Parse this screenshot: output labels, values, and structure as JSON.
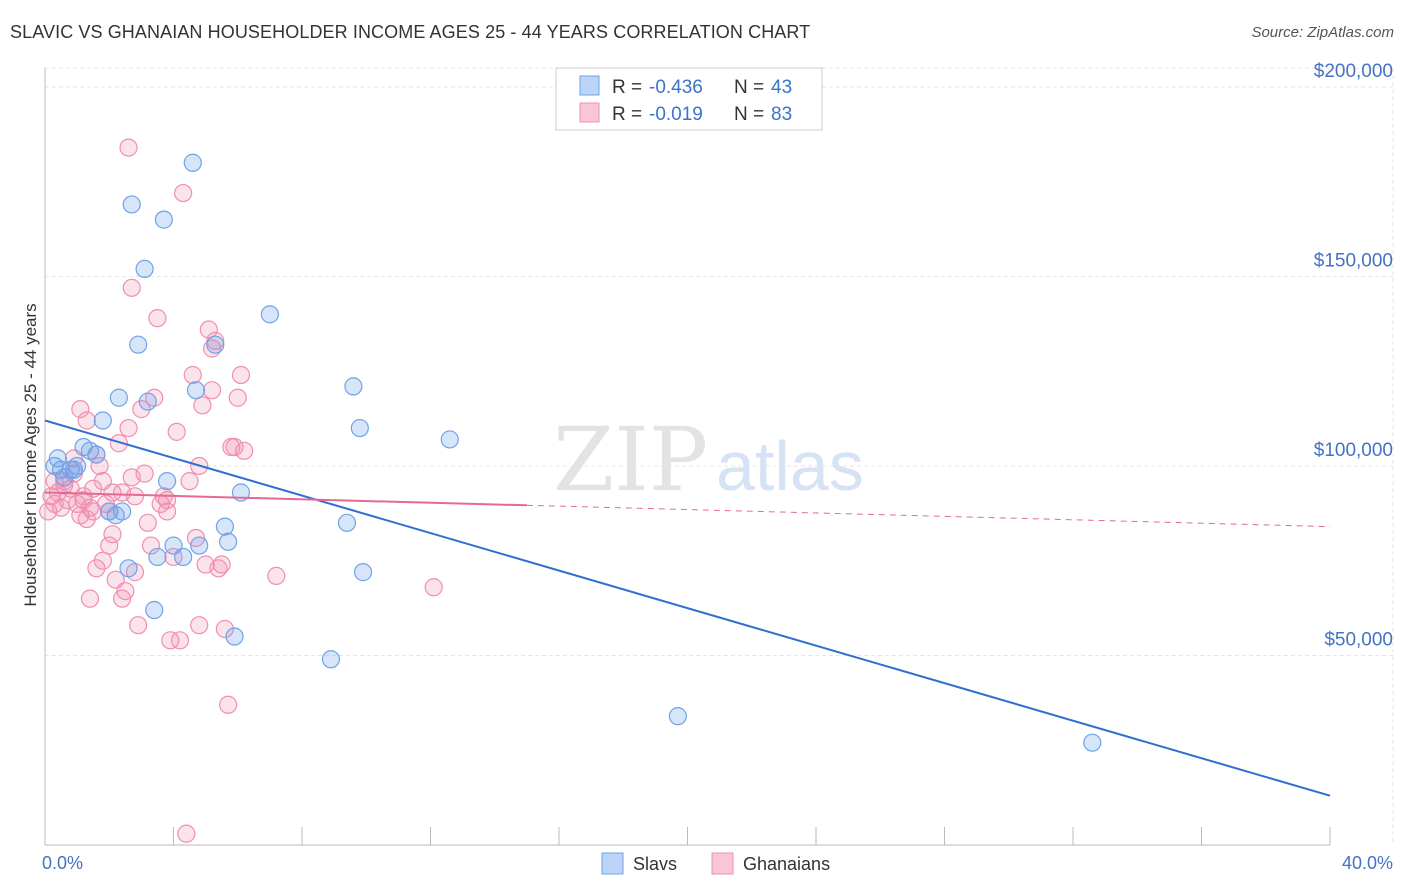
{
  "header": {
    "title": "SLAVIC VS GHANAIAN HOUSEHOLDER INCOME AGES 25 - 44 YEARS CORRELATION CHART",
    "source": "Source: ZipAtlas.com"
  },
  "watermark": {
    "part1": "ZIP",
    "part2": "atlas"
  },
  "colors": {
    "slavs": "#6FA3E8",
    "slavs_line": "#2E6FD0",
    "ghanaians": "#F08FB0",
    "ghanaians_line": "#E46A95",
    "axis_text": "#4472C4",
    "grid": "#e6e6e6"
  },
  "legend": {
    "slavs": {
      "r_label": "R = ",
      "r_value": "-0.436",
      "n_label": "N = ",
      "n_value": "43"
    },
    "ghanaians": {
      "r_label": "R = ",
      "r_value": "-0.019",
      "n_label": "N = ",
      "n_value": "83"
    }
  },
  "chart_data": {
    "type": "scatter",
    "title": "SLAVIC VS GHANAIAN HOUSEHOLDER INCOME AGES 25 - 44 YEARS CORRELATION CHART",
    "xlabel": "",
    "ylabel": "Householder Income Ages 25 - 44 years",
    "xlim": [
      0,
      40
    ],
    "ylim": [
      0,
      205000
    ],
    "x_tick_labels": [
      "0.0%",
      "40.0%"
    ],
    "y_ticks": [
      {
        "value": 50000,
        "label": "$50,000"
      },
      {
        "value": 100000,
        "label": "$100,000"
      },
      {
        "value": 150000,
        "label": "$150,000"
      },
      {
        "value": 200000,
        "label": "$200,000"
      }
    ],
    "grid": true,
    "legend_position": "top-center",
    "series": [
      {
        "name": "Slavs",
        "r": -0.436,
        "n": 43,
        "trend": {
          "x0": 0,
          "y0": 112000,
          "x1": 40,
          "y1": 13000,
          "dashed_from": null
        },
        "points": [
          [
            0.3,
            100000
          ],
          [
            0.5,
            99000
          ],
          [
            0.8,
            99000
          ],
          [
            0.9,
            99000
          ],
          [
            0.6,
            97000
          ],
          [
            1.2,
            105000
          ],
          [
            1.4,
            104000
          ],
          [
            1.6,
            103000
          ],
          [
            1.8,
            112000
          ],
          [
            2.0,
            88000
          ],
          [
            2.2,
            87000
          ],
          [
            2.4,
            88000
          ],
          [
            2.3,
            118000
          ],
          [
            2.6,
            73000
          ],
          [
            2.7,
            169000
          ],
          [
            2.9,
            132000
          ],
          [
            3.1,
            152000
          ],
          [
            3.2,
            117000
          ],
          [
            3.4,
            62000
          ],
          [
            3.5,
            76000
          ],
          [
            3.7,
            165000
          ],
          [
            3.8,
            96000
          ],
          [
            4.0,
            79000
          ],
          [
            4.3,
            76000
          ],
          [
            4.6,
            180000
          ],
          [
            4.7,
            120000
          ],
          [
            4.8,
            79000
          ],
          [
            5.3,
            132000
          ],
          [
            5.6,
            84000
          ],
          [
            5.7,
            80000
          ],
          [
            5.9,
            55000
          ],
          [
            6.1,
            93000
          ],
          [
            7.0,
            140000
          ],
          [
            8.9,
            49000
          ],
          [
            9.4,
            85000
          ],
          [
            9.6,
            121000
          ],
          [
            9.8,
            110000
          ],
          [
            9.9,
            72000
          ],
          [
            12.6,
            107000
          ],
          [
            19.7,
            34000
          ],
          [
            32.6,
            27000
          ],
          [
            0.4,
            102000
          ],
          [
            1.0,
            100000
          ]
        ]
      },
      {
        "name": "Ghanaians",
        "r": -0.019,
        "n": 83,
        "trend": {
          "x0": 0,
          "y0": 93000,
          "x1": 40,
          "y1": 84000,
          "dashed_from": 15
        },
        "points": [
          [
            0.1,
            88000
          ],
          [
            0.2,
            92000
          ],
          [
            0.3,
            96000
          ],
          [
            0.4,
            93000
          ],
          [
            0.5,
            89000
          ],
          [
            0.6,
            95000
          ],
          [
            0.7,
            91000
          ],
          [
            0.8,
            94000
          ],
          [
            0.9,
            98000
          ],
          [
            1.0,
            90000
          ],
          [
            1.1,
            87000
          ],
          [
            1.2,
            92000
          ],
          [
            1.3,
            86000
          ],
          [
            1.4,
            89000
          ],
          [
            1.5,
            94000
          ],
          [
            1.1,
            115000
          ],
          [
            1.3,
            112000
          ],
          [
            1.6,
            103000
          ],
          [
            1.7,
            100000
          ],
          [
            1.8,
            96000
          ],
          [
            1.9,
            90000
          ],
          [
            2.0,
            88000
          ],
          [
            2.1,
            82000
          ],
          [
            1.4,
            65000
          ],
          [
            1.6,
            73000
          ],
          [
            1.8,
            75000
          ],
          [
            2.0,
            79000
          ],
          [
            2.2,
            70000
          ],
          [
            2.3,
            106000
          ],
          [
            2.4,
            65000
          ],
          [
            2.5,
            67000
          ],
          [
            2.6,
            110000
          ],
          [
            2.7,
            97000
          ],
          [
            2.8,
            72000
          ],
          [
            2.9,
            58000
          ],
          [
            3.0,
            115000
          ],
          [
            3.1,
            98000
          ],
          [
            3.2,
            85000
          ],
          [
            3.3,
            79000
          ],
          [
            2.6,
            184000
          ],
          [
            2.7,
            147000
          ],
          [
            3.4,
            118000
          ],
          [
            3.5,
            139000
          ],
          [
            3.6,
            90000
          ],
          [
            3.7,
            92000
          ],
          [
            3.8,
            88000
          ],
          [
            3.9,
            54000
          ],
          [
            4.0,
            76000
          ],
          [
            4.1,
            109000
          ],
          [
            4.2,
            54000
          ],
          [
            4.3,
            172000
          ],
          [
            4.4,
            3000
          ],
          [
            4.5,
            96000
          ],
          [
            4.6,
            124000
          ],
          [
            4.7,
            81000
          ],
          [
            4.8,
            100000
          ],
          [
            4.9,
            116000
          ],
          [
            5.0,
            74000
          ],
          [
            5.1,
            136000
          ],
          [
            5.2,
            131000
          ],
          [
            5.3,
            133000
          ],
          [
            5.4,
            73000
          ],
          [
            5.5,
            74000
          ],
          [
            5.6,
            57000
          ],
          [
            5.7,
            37000
          ],
          [
            5.8,
            105000
          ],
          [
            5.9,
            105000
          ],
          [
            6.0,
            118000
          ],
          [
            6.1,
            124000
          ],
          [
            6.2,
            104000
          ],
          [
            7.2,
            71000
          ],
          [
            12.1,
            68000
          ],
          [
            0.9,
            102000
          ],
          [
            1.2,
            91000
          ],
          [
            2.4,
            93000
          ],
          [
            3.8,
            91000
          ],
          [
            4.8,
            58000
          ],
          [
            5.2,
            120000
          ],
          [
            1.5,
            88000
          ],
          [
            2.1,
            93000
          ],
          [
            0.6,
            96000
          ],
          [
            0.3,
            90000
          ],
          [
            2.8,
            92000
          ]
        ]
      }
    ]
  },
  "bottom_legend": {
    "slavs": "Slavs",
    "ghanaians": "Ghanaians"
  }
}
